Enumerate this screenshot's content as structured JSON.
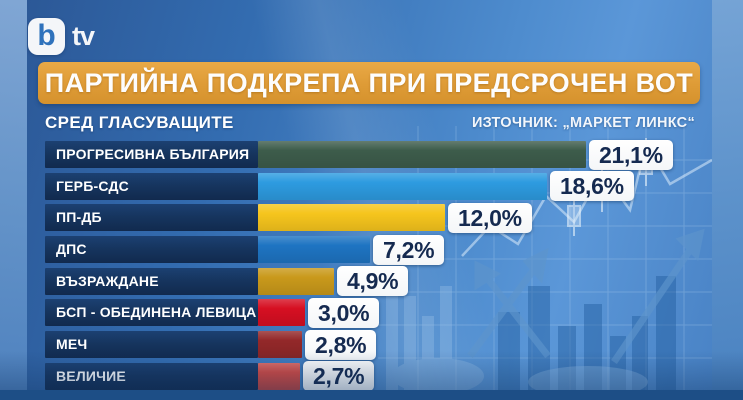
{
  "logo": {
    "b": "b",
    "tv": "tv"
  },
  "header": {
    "title": "ПАРТИЙНА ПОДКРЕПА ПРИ ПРЕДСРОЧЕН ВОТ",
    "subtitle": "СРЕД ГЛАСУВАЩИТЕ",
    "source": "ИЗТОЧНИК: „МАРКЕТ ЛИНКС“"
  },
  "chart_data": {
    "type": "bar",
    "orientation": "horizontal",
    "title": "ПАРТИЙНА ПОДКРЕПА ПРИ ПРЕДСРОЧЕН ВОТ",
    "subtitle": "СРЕД ГЛАСУВАЩИТЕ",
    "source": "ИЗТОЧНИК: „МАРКЕТ ЛИНКС“",
    "unit": "%",
    "xlim": [
      0,
      21.1
    ],
    "grid": false,
    "categories": [
      "ПРОГРЕСИВНА БЪЛГАРИЯ",
      "ГЕРБ-СДС",
      "ПП-ДБ",
      "ДПС",
      "ВЪЗРАЖДАНЕ",
      "БСП - ОБЕДИНЕНА ЛЕВИЦА",
      "МЕЧ",
      "ВЕЛИЧИЕ"
    ],
    "values": [
      21.1,
      18.6,
      12.0,
      7.2,
      4.9,
      3.0,
      2.8,
      2.7
    ],
    "value_labels": [
      "21,1%",
      "18,6%",
      "12,0%",
      "7,2%",
      "4,9%",
      "3,0%",
      "2,8%",
      "2,7%"
    ],
    "bar_colors": [
      "#3D5C4B",
      "#2D9BE0",
      "#F6C51D",
      "#1E74C2",
      "#C9991B",
      "#D60F22",
      "#932829",
      "#D84A42"
    ]
  },
  "colors": {
    "title_bar": "#DE9B36",
    "label_box": "#16355F",
    "value_text": "#152A50",
    "background": "#3A74BE",
    "bottom_strip": "#1D4E86"
  }
}
